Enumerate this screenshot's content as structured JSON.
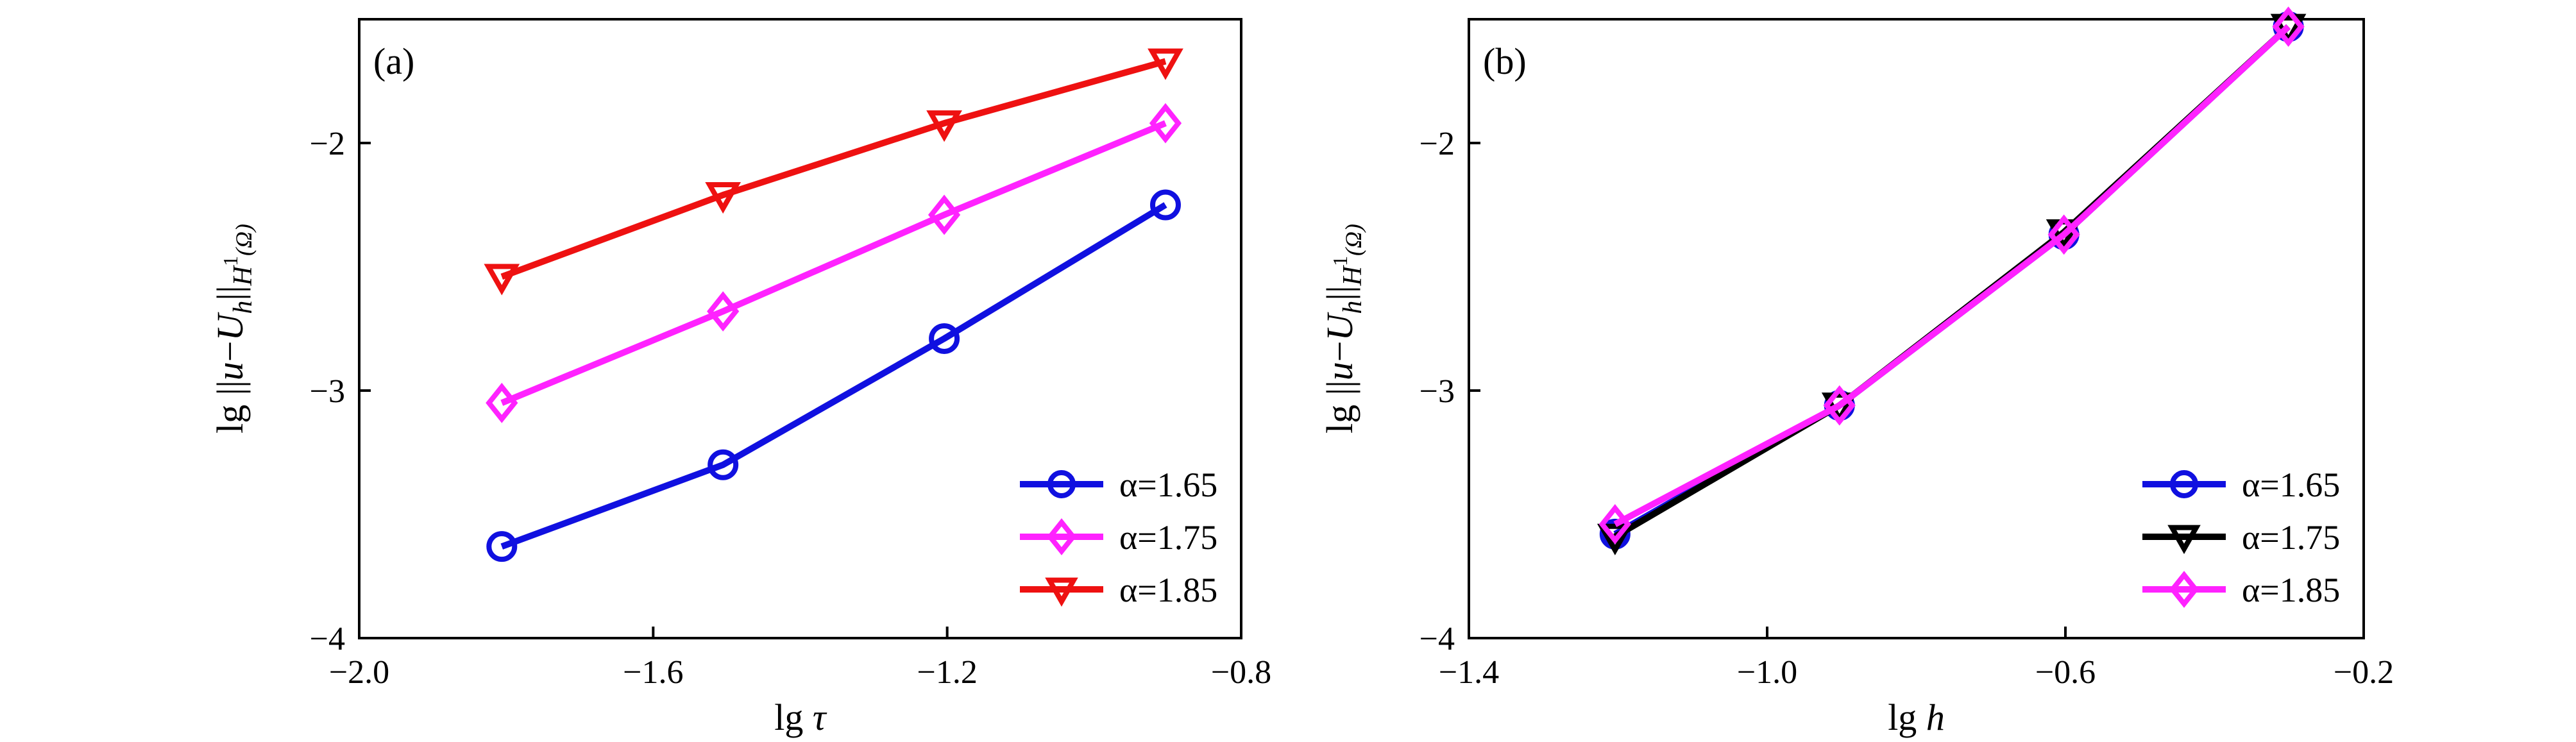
{
  "chart_data": [
    {
      "type": "line",
      "panel_label": "(a)",
      "xlabel": "lg τ",
      "xlabel_parts": {
        "prefix": "lg ",
        "var": "τ"
      },
      "ylabel": "lg ||u−Uh||H1(Ω)",
      "xlim": [
        -2.0,
        -0.8
      ],
      "ylim": [
        -4,
        -1.5
      ],
      "xticks": [
        -2.0,
        -1.6,
        -1.2,
        -0.8
      ],
      "xtick_labels": [
        "−2.0",
        "−1.6",
        "−1.2",
        "−0.8"
      ],
      "yticks": [
        -4,
        -3,
        -2
      ],
      "ytick_labels": [
        "−4",
        "−3",
        "−2"
      ],
      "legend_position": "bottom-right",
      "grid": false,
      "series": [
        {
          "name": "α=1.65",
          "color": "#1010e0",
          "marker": "circle",
          "x": [
            -1.806,
            -1.505,
            -1.204,
            -0.903
          ],
          "y": [
            -3.63,
            -3.3,
            -2.79,
            -2.25
          ]
        },
        {
          "name": "α=1.75",
          "color": "#ff22ff",
          "marker": "diamond",
          "x": [
            -1.806,
            -1.505,
            -1.204,
            -0.903
          ],
          "y": [
            -3.05,
            -2.68,
            -2.29,
            -1.92
          ]
        },
        {
          "name": "α=1.85",
          "color": "#ee1111",
          "marker": "triangle-down",
          "x": [
            -1.806,
            -1.505,
            -1.204,
            -0.903
          ],
          "y": [
            -2.54,
            -2.21,
            -1.92,
            -1.67
          ]
        }
      ]
    },
    {
      "type": "line",
      "panel_label": "(b)",
      "xlabel": "lg h",
      "xlabel_parts": {
        "prefix": "lg ",
        "var": "h"
      },
      "ylabel": "lg ||u−Uh||H1(Ω)",
      "xlim": [
        -1.4,
        -0.2
      ],
      "ylim": [
        -4,
        -1.5
      ],
      "xticks": [
        -1.4,
        -1.0,
        -0.6,
        -0.2
      ],
      "xtick_labels": [
        "−1.4",
        "−1.0",
        "−0.6",
        "−0.2"
      ],
      "yticks": [
        -4,
        -3,
        -2
      ],
      "ytick_labels": [
        "−4",
        "−3",
        "−2"
      ],
      "legend_position": "bottom-right",
      "grid": false,
      "series": [
        {
          "name": "α=1.65",
          "color": "#1010e0",
          "marker": "circle",
          "x": [
            -1.204,
            -0.903,
            -0.602,
            -0.301
          ],
          "y": [
            -3.58,
            -3.06,
            -2.37,
            -1.53
          ]
        },
        {
          "name": "α=1.75",
          "color": "#000000",
          "marker": "triangle-down",
          "x": [
            -1.204,
            -0.903,
            -0.602,
            -0.301
          ],
          "y": [
            -3.59,
            -3.06,
            -2.36,
            -1.53
          ]
        },
        {
          "name": "α=1.85",
          "color": "#ff22ff",
          "marker": "diamond",
          "x": [
            -1.204,
            -0.903,
            -0.602,
            -0.301
          ],
          "y": [
            -3.54,
            -3.06,
            -2.37,
            -1.53
          ]
        }
      ]
    }
  ]
}
